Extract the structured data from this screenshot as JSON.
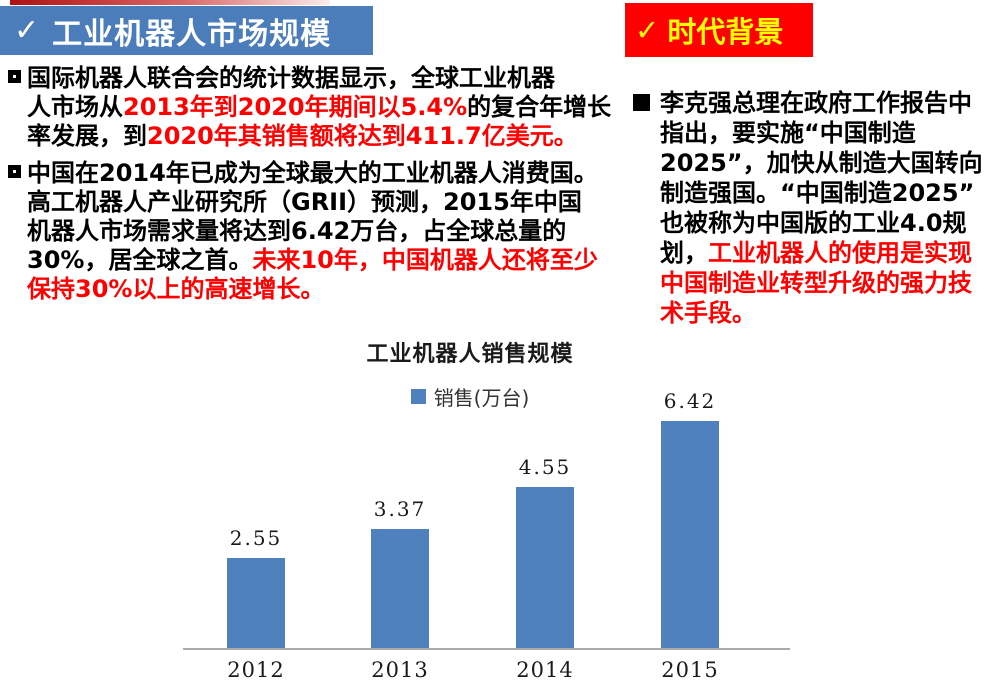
{
  "header": {
    "left_tab": {
      "check": "✓",
      "label": "工业机器人市场规模",
      "bg": "#4c7dbb",
      "text_color": "#ffffff"
    },
    "right_tab": {
      "check": "✓",
      "label": "时代背景",
      "bg": "#ff0000",
      "text_color": "#ffff00"
    }
  },
  "colors": {
    "highlight_red": "#ff0000",
    "body_black": "#000000",
    "bar_blue": "#4e81bd"
  },
  "left_column": {
    "bullets": [
      {
        "marker": "hollow-square",
        "segments": [
          {
            "text": "国际机器人联合会的统计数据显示，全球工业机器\n人市场从",
            "color": "#000000"
          },
          {
            "text": "2013年到2020年期间以5.4%",
            "color": "#ff0000"
          },
          {
            "text": "的复合年增长\n率发展，到",
            "color": "#000000"
          },
          {
            "text": "2020年其销售额将达到411.7亿美元。",
            "color": "#ff0000"
          }
        ]
      },
      {
        "marker": "hollow-square",
        "segments": [
          {
            "text": "中国在2014年已成为全球最大的工业机器人消费国。\n高工机器人产业研究所（GRII）预测，2015年中国\n机器人市场需求量将达到6.42万台，占全球总量的\n30%，居全球之首。",
            "color": "#000000"
          },
          {
            "text": "未来10年，中国机器人还将至少\n保持30%以上的高速增长。",
            "color": "#ff0000"
          }
        ]
      }
    ]
  },
  "right_column": {
    "bullets": [
      {
        "marker": "filled-square",
        "segments": [
          {
            "text": "李克强总理在政府工作报告中\n指出，要实施“中国制造\n2025”，加快从制造大国转向\n制造强国。“中国制造2025”\n也被称为中国版的工业4.0规\n划，",
            "color": "#000000"
          },
          {
            "text": "工业机器人的使用是实现\n中国制造业转型升级的强力技\n术手段。",
            "color": "#ff0000"
          }
        ]
      }
    ]
  },
  "chart_data": {
    "type": "bar",
    "title": "工业机器人销售规模",
    "legend": [
      {
        "label": "销售(万台)",
        "color": "#4e81bd"
      }
    ],
    "legend_position": "top",
    "categories": [
      "2012",
      "2013",
      "2014",
      "2015"
    ],
    "values": [
      2.55,
      3.37,
      4.55,
      6.42
    ],
    "value_labels": [
      "2.55",
      "3.37",
      "4.55",
      "6.42"
    ],
    "bar_color": "#4e81bd",
    "axis_color": "#ababab",
    "ylim": [
      0,
      7
    ],
    "grid": false
  }
}
